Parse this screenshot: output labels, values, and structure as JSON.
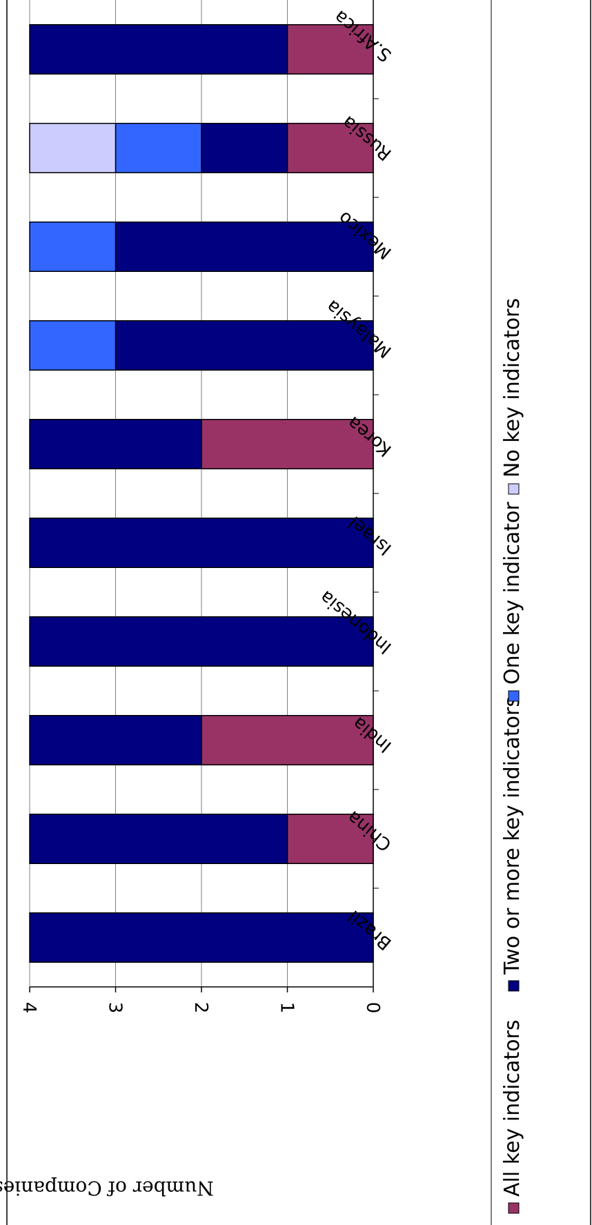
{
  "chart_data": {
    "type": "bar",
    "stacked": true,
    "orientation": "horizontal",
    "ylabel": "Number of Companies",
    "xlabel": "",
    "ylim": [
      0,
      4
    ],
    "yticks": [
      "0",
      "1",
      "2",
      "3",
      "4"
    ],
    "grid": true,
    "legend_placement": "bottom",
    "categories": [
      "Brazil",
      "China",
      "India",
      "Indonesia",
      "Israel",
      "Korea",
      "Malaysia",
      "Mexico",
      "Russia",
      "S.Africa"
    ],
    "series": [
      {
        "name": "All key indicators",
        "color": "#993366",
        "values": [
          0,
          1,
          2,
          0,
          0,
          2,
          0,
          0,
          1,
          1
        ]
      },
      {
        "name": "Two or more key indicators",
        "color": "#000080",
        "values": [
          4,
          3,
          2,
          4,
          4,
          2,
          3,
          3,
          1,
          3
        ]
      },
      {
        "name": "One key indicator",
        "color": "#3366FF",
        "values": [
          0,
          0,
          0,
          0,
          0,
          0,
          1,
          1,
          1,
          0
        ]
      },
      {
        "name": "No key indicators",
        "color": "#CCCCFF",
        "values": [
          0,
          0,
          0,
          0,
          0,
          0,
          0,
          0,
          1,
          0
        ]
      }
    ]
  }
}
